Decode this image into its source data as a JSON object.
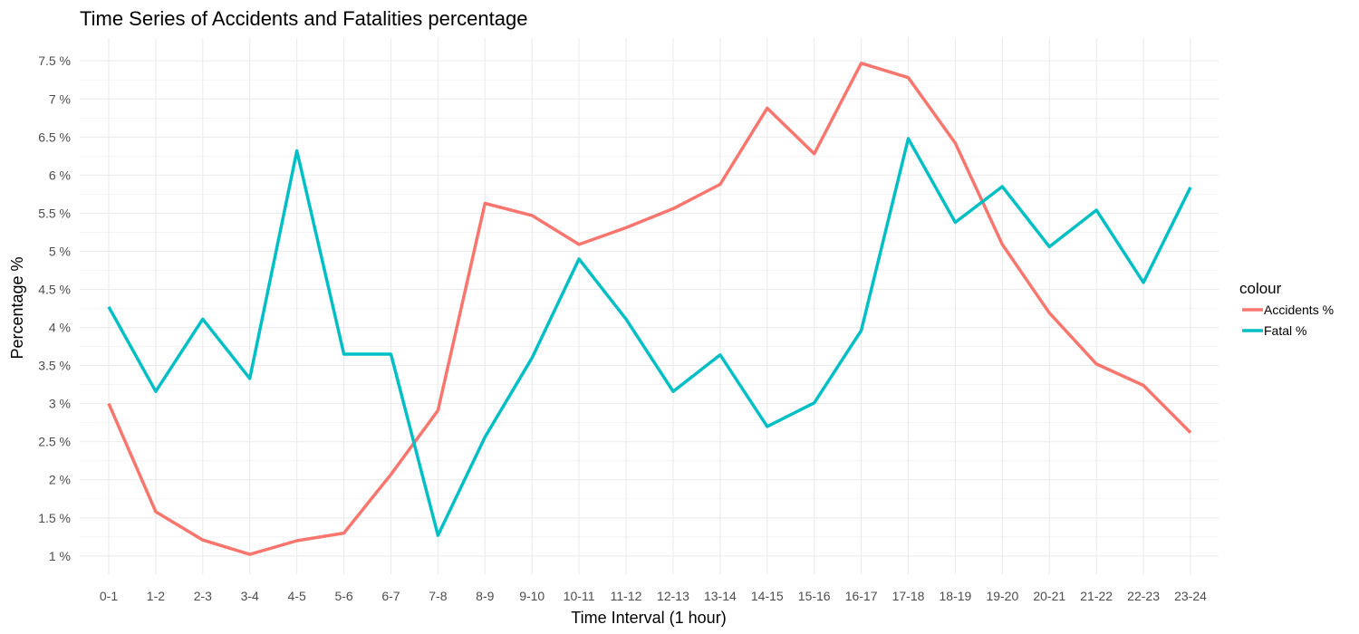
{
  "chart_data": {
    "type": "line",
    "title": "Time Series of Accidents and Fatalities percentage",
    "xlabel": "Time Interval (1 hour)",
    "ylabel": "Percentage %",
    "categories": [
      "0-1",
      "1-2",
      "2-3",
      "3-4",
      "4-5",
      "5-6",
      "6-7",
      "7-8",
      "8-9",
      "9-10",
      "10-11",
      "11-12",
      "12-13",
      "13-14",
      "14-15",
      "15-16",
      "16-17",
      "17-18",
      "18-19",
      "19-20",
      "20-21",
      "21-22",
      "22-23",
      "23-24"
    ],
    "ylim": [
      0.76,
      7.8
    ],
    "y_ticks": [
      1,
      1.5,
      2,
      2.5,
      3,
      3.5,
      4,
      4.5,
      5,
      5.5,
      6,
      6.5,
      7,
      7.5
    ],
    "y_tick_labels": [
      "1 %",
      "1.5 %",
      "2 %",
      "2.5 %",
      "3 %",
      "3.5 %",
      "4 %",
      "4.5 %",
      "5 %",
      "5.5 %",
      "6 %",
      "6.5 %",
      "7 %",
      "7.5 %"
    ],
    "grid": true,
    "legend": {
      "title": "colour",
      "position": "right"
    },
    "series": [
      {
        "name": "Accidents %",
        "color": "#f8766d",
        "values": [
          3.0,
          1.58,
          1.21,
          1.02,
          1.2,
          1.3,
          2.07,
          2.91,
          5.63,
          5.47,
          5.09,
          5.31,
          5.56,
          5.88,
          6.88,
          6.28,
          7.47,
          7.28,
          6.42,
          5.09,
          4.19,
          3.52,
          3.24,
          2.62
        ]
      },
      {
        "name": "Fatal %",
        "color": "#00bfc4",
        "values": [
          4.27,
          3.16,
          4.11,
          3.33,
          6.32,
          3.65,
          3.65,
          1.27,
          2.56,
          3.6,
          4.9,
          4.11,
          3.16,
          3.64,
          2.7,
          3.01,
          3.96,
          6.48,
          5.38,
          5.85,
          5.06,
          5.54,
          4.59,
          5.84
        ]
      }
    ]
  }
}
